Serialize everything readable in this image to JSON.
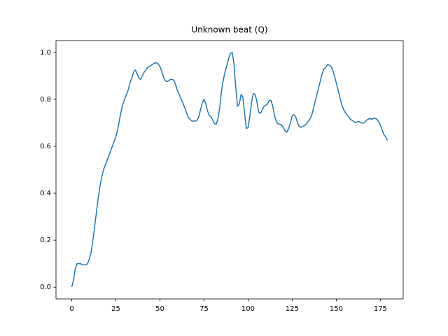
{
  "chart_data": {
    "type": "line",
    "title": "Unknown beat (Q)",
    "x": [
      0,
      1,
      2,
      3,
      4,
      5,
      6,
      7,
      8,
      9,
      10,
      11,
      12,
      13,
      14,
      15,
      16,
      17,
      18,
      19,
      20,
      21,
      22,
      23,
      24,
      25,
      26,
      27,
      28,
      29,
      30,
      31,
      32,
      33,
      34,
      35,
      36,
      37,
      38,
      39,
      40,
      41,
      42,
      43,
      44,
      45,
      46,
      47,
      48,
      49,
      50,
      51,
      52,
      53,
      54,
      55,
      56,
      57,
      58,
      59,
      60,
      61,
      62,
      63,
      64,
      65,
      66,
      67,
      68,
      69,
      70,
      71,
      72,
      73,
      74,
      75,
      76,
      77,
      78,
      79,
      80,
      81,
      82,
      83,
      84,
      85,
      86,
      87,
      88,
      89,
      90,
      91,
      92,
      93,
      94,
      95,
      96,
      97,
      98,
      99,
      100,
      101,
      102,
      103,
      104,
      105,
      106,
      107,
      108,
      109,
      110,
      111,
      112,
      113,
      114,
      115,
      116,
      117,
      118,
      119,
      120,
      121,
      122,
      123,
      124,
      125,
      126,
      127,
      128,
      129,
      130,
      131,
      132,
      133,
      134,
      135,
      136,
      137,
      138,
      139,
      140,
      141,
      142,
      143,
      144,
      145,
      146,
      147,
      148,
      149,
      150,
      151,
      152,
      153,
      154,
      155,
      156,
      157,
      158,
      159,
      160,
      161,
      162,
      163,
      164,
      165,
      166,
      167,
      168,
      169,
      170,
      171,
      172,
      173,
      174,
      175,
      176,
      177,
      178,
      179
    ],
    "series": [
      {
        "color": "#1f77b4",
        "values": [
          0,
          0.03,
          0.08,
          0.1,
          0.1,
          0.1,
          0.095,
          0.095,
          0.095,
          0.1,
          0.12,
          0.15,
          0.2,
          0.26,
          0.32,
          0.38,
          0.43,
          0.47,
          0.5,
          0.52,
          0.54,
          0.56,
          0.58,
          0.6,
          0.62,
          0.64,
          0.67,
          0.71,
          0.75,
          0.78,
          0.8,
          0.82,
          0.84,
          0.87,
          0.89,
          0.915,
          0.925,
          0.91,
          0.89,
          0.885,
          0.9,
          0.915,
          0.925,
          0.935,
          0.94,
          0.945,
          0.95,
          0.955,
          0.955,
          0.95,
          0.94,
          0.92,
          0.895,
          0.88,
          0.875,
          0.88,
          0.885,
          0.885,
          0.88,
          0.86,
          0.835,
          0.82,
          0.8,
          0.785,
          0.765,
          0.745,
          0.725,
          0.715,
          0.708,
          0.707,
          0.707,
          0.71,
          0.725,
          0.755,
          0.785,
          0.8,
          0.78,
          0.75,
          0.73,
          0.725,
          0.71,
          0.695,
          0.695,
          0.72,
          0.77,
          0.84,
          0.885,
          0.92,
          0.945,
          0.975,
          0.995,
          1.0,
          0.95,
          0.85,
          0.77,
          0.78,
          0.82,
          0.81,
          0.74,
          0.675,
          0.68,
          0.73,
          0.79,
          0.825,
          0.82,
          0.79,
          0.745,
          0.74,
          0.755,
          0.77,
          0.775,
          0.78,
          0.795,
          0.795,
          0.77,
          0.73,
          0.705,
          0.695,
          0.695,
          0.69,
          0.68,
          0.665,
          0.66,
          0.675,
          0.7,
          0.73,
          0.735,
          0.725,
          0.7,
          0.685,
          0.68,
          0.685,
          0.688,
          0.695,
          0.705,
          0.715,
          0.73,
          0.76,
          0.79,
          0.82,
          0.85,
          0.88,
          0.91,
          0.93,
          0.935,
          0.948,
          0.945,
          0.94,
          0.925,
          0.9,
          0.87,
          0.84,
          0.81,
          0.78,
          0.76,
          0.745,
          0.735,
          0.725,
          0.715,
          0.71,
          0.705,
          0.7,
          0.705,
          0.705,
          0.7,
          0.698,
          0.7,
          0.71,
          0.715,
          0.718,
          0.715,
          0.718,
          0.72,
          0.715,
          0.705,
          0.69,
          0.67,
          0.65,
          0.64,
          0.625
        ]
      }
    ],
    "xlim": [
      -8.95,
      187.95
    ],
    "ylim": [
      -0.05,
      1.05
    ],
    "xticks": [
      0,
      25,
      50,
      75,
      100,
      125,
      150,
      175
    ],
    "yticks": [
      {
        "value": 0,
        "label": "0.0"
      },
      0.2,
      0.4,
      0.6,
      0.8,
      {
        "value": 1,
        "label": "1.0"
      }
    ],
    "grid": false
  }
}
